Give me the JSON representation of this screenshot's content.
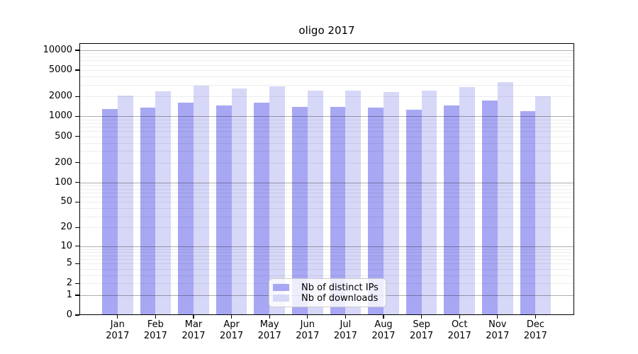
{
  "title": "oligo 2017",
  "chart_data": {
    "type": "bar",
    "title": "oligo 2017",
    "categories": [
      "Jan 2017",
      "Feb 2017",
      "Mar 2017",
      "Apr 2017",
      "May 2017",
      "Jun 2017",
      "Jul 2017",
      "Aug 2017",
      "Sep 2017",
      "Oct 2017",
      "Nov 2017",
      "Dec 2017"
    ],
    "series": [
      {
        "name": "Nb of distinct IPs",
        "color": "#a7a7f3",
        "values": [
          1300,
          1360,
          1610,
          1480,
          1620,
          1400,
          1390,
          1350,
          1250,
          1470,
          1750,
          1210
        ]
      },
      {
        "name": "Nb of downloads",
        "color": "#d7d7f8",
        "values": [
          2090,
          2370,
          2900,
          2640,
          2840,
          2450,
          2430,
          2330,
          2430,
          2770,
          3270,
          2040
        ]
      }
    ],
    "yscale": "log1p",
    "ylim": [
      0,
      10000
    ],
    "yticks": [
      0,
      1,
      2,
      5,
      10,
      20,
      50,
      100,
      200,
      500,
      1000,
      2000,
      5000,
      10000
    ],
    "grid": "horizontal log minor and major decade lines, drawn over bars",
    "legend_position": "inside bottom-center",
    "axis_color": "#000000"
  }
}
